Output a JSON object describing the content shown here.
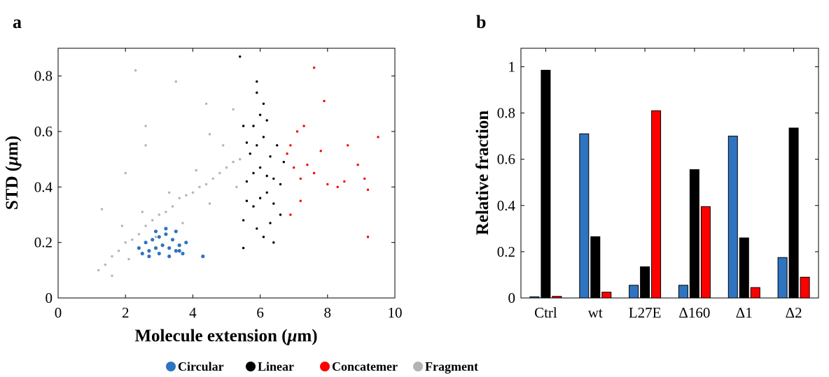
{
  "panels": {
    "a": "a",
    "b": "b"
  },
  "legend": [
    {
      "label": "Circular",
      "color": "#2e74c0"
    },
    {
      "label": "Linear",
      "color": "#000000"
    },
    {
      "label": "Concatemer",
      "color": "#ff0000"
    },
    {
      "label": "Fragment",
      "color": "#b3b3b3"
    }
  ],
  "chart_data": [
    {
      "type": "scatter",
      "panel": "a",
      "title": "",
      "xlabel_main": "Molecule extension (",
      "xlabel_unit": "μ",
      "xlabel_end": "m)",
      "ylabel_main": "STD (",
      "ylabel_unit": "μ",
      "ylabel_end": "m)",
      "xlim": [
        0,
        10
      ],
      "ylim": [
        0,
        0.9
      ],
      "xticks": [
        0,
        2,
        4,
        6,
        8,
        10
      ],
      "yticks": [
        0,
        0.2,
        0.4,
        0.6,
        0.8
      ],
      "xtick_labels": [
        "0",
        "2",
        "4",
        "6",
        "8",
        "10"
      ],
      "ytick_labels": [
        "0",
        "0.2",
        "0.4",
        "0.6",
        "0.8"
      ],
      "series": [
        {
          "name": "Fragment",
          "color": "#b3b3b3",
          "points": [
            [
              1.2,
              0.1
            ],
            [
              1.4,
              0.12
            ],
            [
              1.6,
              0.15
            ],
            [
              1.8,
              0.17
            ],
            [
              2.0,
              0.2
            ],
            [
              2.2,
              0.21
            ],
            [
              2.4,
              0.23
            ],
            [
              2.6,
              0.26
            ],
            [
              2.8,
              0.28
            ],
            [
              3.0,
              0.3
            ],
            [
              3.2,
              0.31
            ],
            [
              3.4,
              0.33
            ],
            [
              3.6,
              0.36
            ],
            [
              3.8,
              0.37
            ],
            [
              4.0,
              0.38
            ],
            [
              4.2,
              0.4
            ],
            [
              4.4,
              0.41
            ],
            [
              4.6,
              0.43
            ],
            [
              4.8,
              0.45
            ],
            [
              5.0,
              0.47
            ],
            [
              5.2,
              0.49
            ],
            [
              5.4,
              0.5
            ],
            [
              1.9,
              0.26
            ],
            [
              2.5,
              0.31
            ],
            [
              3.3,
              0.38
            ],
            [
              4.1,
              0.46
            ],
            [
              4.9,
              0.55
            ],
            [
              2.1,
              0.14
            ],
            [
              2.9,
              0.22
            ],
            [
              3.7,
              0.27
            ],
            [
              4.5,
              0.34
            ],
            [
              5.3,
              0.4
            ],
            [
              2.0,
              0.45
            ],
            [
              1.3,
              0.32
            ],
            [
              2.6,
              0.55
            ],
            [
              4.4,
              0.7
            ],
            [
              3.5,
              0.78
            ],
            [
              2.3,
              0.82
            ],
            [
              2.6,
              0.62
            ],
            [
              4.5,
              0.59
            ],
            [
              5.2,
              0.68
            ],
            [
              1.6,
              0.08
            ]
          ]
        },
        {
          "name": "Circular",
          "color": "#2e74c0",
          "points": [
            [
              2.5,
              0.16
            ],
            [
              2.7,
              0.17
            ],
            [
              2.9,
              0.18
            ],
            [
              3.1,
              0.19
            ],
            [
              3.3,
              0.18
            ],
            [
              3.5,
              0.17
            ],
            [
              3.7,
              0.16
            ],
            [
              2.6,
              0.2
            ],
            [
              2.8,
              0.21
            ],
            [
              3.0,
              0.22
            ],
            [
              3.2,
              0.23
            ],
            [
              3.4,
              0.21
            ],
            [
              3.6,
              0.19
            ],
            [
              2.4,
              0.18
            ],
            [
              2.7,
              0.15
            ],
            [
              3.0,
              0.16
            ],
            [
              3.3,
              0.15
            ],
            [
              3.6,
              0.17
            ],
            [
              3.8,
              0.2
            ],
            [
              2.9,
              0.24
            ],
            [
              3.2,
              0.25
            ],
            [
              3.5,
              0.24
            ],
            [
              4.3,
              0.15
            ]
          ]
        },
        {
          "name": "Linear",
          "color": "#000000",
          "points": [
            [
              5.6,
              0.42
            ],
            [
              5.8,
              0.45
            ],
            [
              6.0,
              0.47
            ],
            [
              6.2,
              0.44
            ],
            [
              6.4,
              0.43
            ],
            [
              5.7,
              0.52
            ],
            [
              5.9,
              0.55
            ],
            [
              6.1,
              0.58
            ],
            [
              6.3,
              0.51
            ],
            [
              5.6,
              0.35
            ],
            [
              5.8,
              0.33
            ],
            [
              6.0,
              0.36
            ],
            [
              6.2,
              0.38
            ],
            [
              6.4,
              0.34
            ],
            [
              6.6,
              0.41
            ],
            [
              5.5,
              0.28
            ],
            [
              5.9,
              0.25
            ],
            [
              6.1,
              0.22
            ],
            [
              6.3,
              0.27
            ],
            [
              6.6,
              0.3
            ],
            [
              5.8,
              0.62
            ],
            [
              6.0,
              0.66
            ],
            [
              6.2,
              0.64
            ],
            [
              5.5,
              0.62
            ],
            [
              6.1,
              0.7
            ],
            [
              5.9,
              0.74
            ],
            [
              5.6,
              0.56
            ],
            [
              6.5,
              0.55
            ],
            [
              6.7,
              0.49
            ],
            [
              5.5,
              0.18
            ],
            [
              6.4,
              0.2
            ],
            [
              5.4,
              0.87
            ],
            [
              5.9,
              0.78
            ]
          ]
        },
        {
          "name": "Concatemer",
          "color": "#ff0000",
          "points": [
            [
              6.8,
              0.52
            ],
            [
              7.0,
              0.47
            ],
            [
              7.2,
              0.43
            ],
            [
              7.4,
              0.48
            ],
            [
              7.6,
              0.45
            ],
            [
              7.8,
              0.53
            ],
            [
              8.0,
              0.41
            ],
            [
              8.3,
              0.4
            ],
            [
              8.6,
              0.55
            ],
            [
              8.9,
              0.48
            ],
            [
              9.1,
              0.43
            ],
            [
              9.2,
              0.39
            ],
            [
              9.5,
              0.58
            ],
            [
              7.6,
              0.83
            ],
            [
              7.9,
              0.71
            ],
            [
              7.3,
              0.62
            ],
            [
              7.1,
              0.6
            ],
            [
              6.9,
              0.55
            ],
            [
              7.2,
              0.35
            ],
            [
              6.9,
              0.3
            ],
            [
              9.2,
              0.22
            ],
            [
              8.5,
              0.42
            ]
          ]
        }
      ]
    },
    {
      "type": "bar",
      "panel": "b",
      "title": "",
      "xlabel": "",
      "ylabel": "Relative fraction",
      "ylim": [
        0,
        1.08
      ],
      "yticks": [
        0,
        0.2,
        0.4,
        0.6,
        0.8,
        1
      ],
      "ytick_labels": [
        "0",
        "0.2",
        "0.4",
        "0.6",
        "0.8",
        "1"
      ],
      "categories": [
        "Ctrl",
        "wt",
        "L27E",
        "Δ160",
        "Δ1",
        "Δ2"
      ],
      "series": [
        {
          "name": "Circular",
          "color": "#2e74c0",
          "values": [
            0.005,
            0.71,
            0.055,
            0.055,
            0.7,
            0.175
          ]
        },
        {
          "name": "Linear",
          "color": "#000000",
          "values": [
            0.985,
            0.265,
            0.135,
            0.555,
            0.26,
            0.735
          ]
        },
        {
          "name": "Concatemer",
          "color": "#ff0000",
          "values": [
            0.007,
            0.025,
            0.81,
            0.395,
            0.045,
            0.09
          ]
        }
      ]
    }
  ]
}
